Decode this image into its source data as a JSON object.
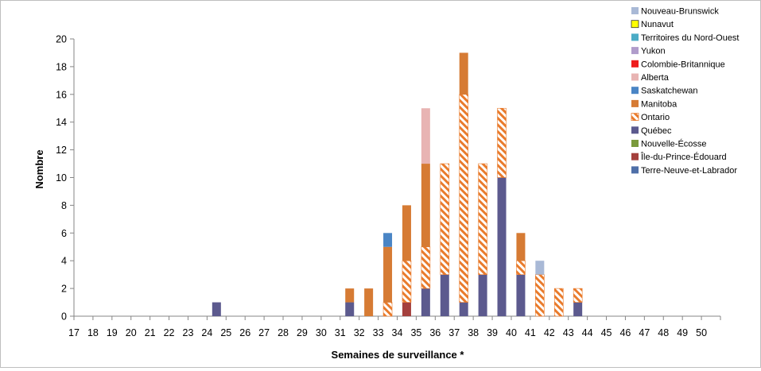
{
  "chart_data": {
    "type": "bar",
    "stacked": true,
    "title": "",
    "xlabel": "Semaines de surveillance *",
    "ylabel": "Nombre",
    "ylim": [
      0,
      20
    ],
    "ytick_step": 2,
    "yticks": [
      "0",
      "2",
      "4",
      "6",
      "8",
      "10",
      "12",
      "14",
      "16",
      "18",
      "20"
    ],
    "categories": [
      "17",
      "18",
      "19",
      "20",
      "21",
      "22",
      "23",
      "24",
      "25",
      "26",
      "27",
      "28",
      "29",
      "30",
      "31",
      "32",
      "33",
      "34",
      "35",
      "36",
      "37",
      "38",
      "39",
      "40",
      "41",
      "42",
      "43",
      "44",
      "45",
      "46",
      "47",
      "48",
      "49",
      "50"
    ],
    "grid": false,
    "legend_position": "top-right",
    "series": [
      {
        "name": "Terre-Neuve-et-Labrador",
        "color": "#4f6fa8",
        "pattern": "solid",
        "values": [
          0,
          0,
          0,
          0,
          0,
          0,
          0,
          0,
          0,
          0,
          0,
          0,
          0,
          0,
          0,
          0,
          0,
          0,
          0,
          0,
          0,
          0,
          0,
          0,
          0,
          0,
          0,
          0,
          0,
          0,
          0,
          0,
          0,
          0
        ]
      },
      {
        "name": "Île-du-Prince-Édouard",
        "color": "#a4403d",
        "pattern": "solid",
        "values": [
          0,
          0,
          0,
          0,
          0,
          0,
          0,
          0,
          0,
          0,
          0,
          0,
          0,
          0,
          0,
          0,
          0,
          1,
          0,
          0,
          0,
          0,
          0,
          0,
          0,
          0,
          0,
          0,
          0,
          0,
          0,
          0,
          0,
          0
        ]
      },
      {
        "name": "Nouvelle-Écosse",
        "color": "#7a9a3c",
        "pattern": "solid",
        "values": [
          0,
          0,
          0,
          0,
          0,
          0,
          0,
          0,
          0,
          0,
          0,
          0,
          0,
          0,
          0,
          0,
          0,
          0,
          0,
          0,
          0,
          0,
          0,
          0,
          0,
          0,
          0,
          0,
          0,
          0,
          0,
          0,
          0,
          0
        ]
      },
      {
        "name": "Québec",
        "color": "#5c5a8e",
        "pattern": "solid",
        "values": [
          0,
          0,
          0,
          0,
          0,
          0,
          0,
          1,
          0,
          0,
          0,
          0,
          0,
          0,
          1,
          0,
          0,
          0,
          2,
          3,
          1,
          3,
          10,
          3,
          0,
          0,
          1,
          0,
          0,
          0,
          0,
          0,
          0,
          0
        ]
      },
      {
        "name": "Ontario",
        "color": "#e97b2c",
        "pattern": "hatch",
        "values": [
          0,
          0,
          0,
          0,
          0,
          0,
          0,
          0,
          0,
          0,
          0,
          0,
          0,
          0,
          0,
          0,
          1,
          3,
          3,
          8,
          15,
          8,
          5,
          1,
          3,
          2,
          1,
          0,
          0,
          0,
          0,
          0,
          0,
          0
        ]
      },
      {
        "name": "Manitoba",
        "color": "#d67b34",
        "pattern": "solid",
        "values": [
          0,
          0,
          0,
          0,
          0,
          0,
          0,
          0,
          0,
          0,
          0,
          0,
          0,
          0,
          1,
          2,
          4,
          4,
          6,
          0,
          3,
          0,
          0,
          2,
          0,
          0,
          0,
          0,
          0,
          0,
          0,
          0,
          0,
          0
        ]
      },
      {
        "name": "Saskatchewan",
        "color": "#4a85c5",
        "pattern": "solid",
        "values": [
          0,
          0,
          0,
          0,
          0,
          0,
          0,
          0,
          0,
          0,
          0,
          0,
          0,
          0,
          0,
          0,
          1,
          0,
          0,
          0,
          0,
          0,
          0,
          0,
          0,
          0,
          0,
          0,
          0,
          0,
          0,
          0,
          0,
          0
        ]
      },
      {
        "name": "Alberta",
        "color": "#e8b4b3",
        "pattern": "solid",
        "values": [
          0,
          0,
          0,
          0,
          0,
          0,
          0,
          0,
          0,
          0,
          0,
          0,
          0,
          0,
          0,
          0,
          0,
          0,
          4,
          0,
          0,
          0,
          0,
          0,
          0,
          0,
          0,
          0,
          0,
          0,
          0,
          0,
          0,
          0
        ]
      },
      {
        "name": "Colombie-Britannique",
        "color": "#ee1c1c",
        "pattern": "solid",
        "values": [
          0,
          0,
          0,
          0,
          0,
          0,
          0,
          0,
          0,
          0,
          0,
          0,
          0,
          0,
          0,
          0,
          0,
          0,
          0,
          0,
          0,
          0,
          0,
          0,
          0,
          0,
          0,
          0,
          0,
          0,
          0,
          0,
          0,
          0
        ]
      },
      {
        "name": "Yukon",
        "color": "#b09ccb",
        "pattern": "solid",
        "values": [
          0,
          0,
          0,
          0,
          0,
          0,
          0,
          0,
          0,
          0,
          0,
          0,
          0,
          0,
          0,
          0,
          0,
          0,
          0,
          0,
          0,
          0,
          0,
          0,
          0,
          0,
          0,
          0,
          0,
          0,
          0,
          0,
          0,
          0
        ]
      },
      {
        "name": "Territoires du Nord-Ouest",
        "color": "#4bacc6",
        "pattern": "solid",
        "values": [
          0,
          0,
          0,
          0,
          0,
          0,
          0,
          0,
          0,
          0,
          0,
          0,
          0,
          0,
          0,
          0,
          0,
          0,
          0,
          0,
          0,
          0,
          0,
          0,
          0,
          0,
          0,
          0,
          0,
          0,
          0,
          0,
          0,
          0
        ]
      },
      {
        "name": "Nunavut",
        "color": "#ffff00",
        "pattern": "solid",
        "values": [
          0,
          0,
          0,
          0,
          0,
          0,
          0,
          0,
          0,
          0,
          0,
          0,
          0,
          0,
          0,
          0,
          0,
          0,
          0,
          0,
          0,
          0,
          0,
          0,
          0,
          0,
          0,
          0,
          0,
          0,
          0,
          0,
          0,
          0
        ]
      },
      {
        "name": "Nouveau-Brunswick",
        "color": "#a9b9d6",
        "pattern": "solid",
        "values": [
          0,
          0,
          0,
          0,
          0,
          0,
          0,
          0,
          0,
          0,
          0,
          0,
          0,
          0,
          0,
          0,
          0,
          0,
          0,
          0,
          0,
          0,
          0,
          0,
          1,
          0,
          0,
          0,
          0,
          0,
          0,
          0,
          0,
          0
        ]
      }
    ],
    "legend_order": [
      "Nouveau-Brunswick",
      "Nunavut",
      "Territoires du Nord-Ouest",
      "Yukon",
      "Colombie-Britannique",
      "Alberta",
      "Saskatchewan",
      "Manitoba",
      "Ontario",
      "Québec",
      "Nouvelle-Écosse",
      "Île-du-Prince-Édouard",
      "Terre-Neuve-et-Labrador"
    ]
  }
}
